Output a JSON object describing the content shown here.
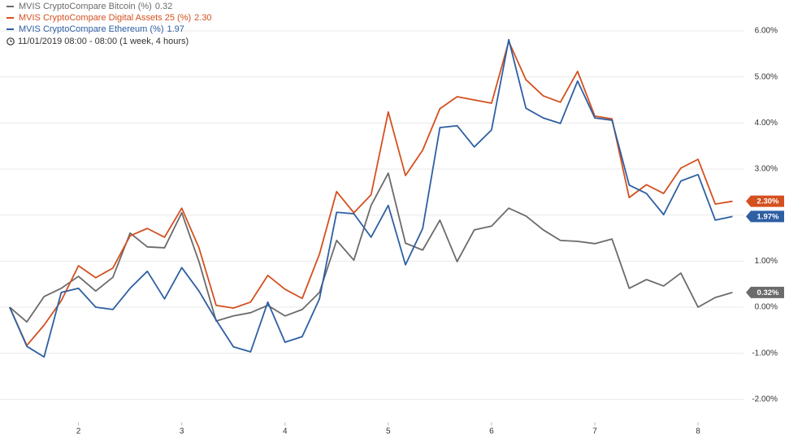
{
  "chart_data": {
    "type": "line",
    "range_label": "11/01/2019 08:00 - 08:00  (1 week, 4 hours)",
    "x": [
      1.3333,
      1.5,
      1.6667,
      1.8333,
      2,
      2.1667,
      2.3333,
      2.5,
      2.6667,
      2.8333,
      3,
      3.1667,
      3.3333,
      3.5,
      3.6667,
      3.8333,
      4,
      4.1667,
      4.3333,
      4.5,
      4.6667,
      4.8333,
      5,
      5.1667,
      5.3333,
      5.5,
      5.6667,
      5.8333,
      6,
      6.1667,
      6.3333,
      6.5,
      6.6667,
      6.8333,
      7,
      7.1667,
      7.3333,
      7.5,
      7.6667,
      7.8333,
      8,
      8.1667,
      8.3333
    ],
    "xlim": [
      1.24,
      8.44
    ],
    "xticks": [
      2,
      3,
      4,
      5,
      6,
      7,
      8
    ],
    "ylim": [
      -2.5,
      6.6
    ],
    "yticks": [
      {
        "value": -2,
        "label": "-2.00%"
      },
      {
        "value": -1,
        "label": "-1.00%"
      },
      {
        "value": 0,
        "label": "0.00%"
      },
      {
        "value": 1,
        "label": "1.00%"
      },
      {
        "value": 2,
        "label": "2.00%"
      },
      {
        "value": 3,
        "label": "3.00%"
      },
      {
        "value": 4,
        "label": "4.00%"
      },
      {
        "value": 5,
        "label": "5.00%"
      },
      {
        "value": 6,
        "label": "6.00%"
      }
    ],
    "grid": true,
    "series": [
      {
        "name": "MVIS CryptoCompare Bitcoin (%)",
        "color": "#6b6b6b",
        "legend_value": "0.32",
        "badge_label": "0.32%",
        "values": [
          0,
          -0.32,
          0.23,
          0.41,
          0.67,
          0.35,
          0.65,
          1.61,
          1.31,
          1.29,
          2.05,
          0.99,
          -0.3,
          -0.19,
          -0.12,
          0.04,
          -0.19,
          -0.05,
          0.32,
          1.45,
          1.02,
          2.21,
          2.91,
          1.39,
          1.24,
          1.89,
          0.99,
          1.68,
          1.76,
          2.15,
          1.98,
          1.68,
          1.45,
          1.43,
          1.38,
          1.48,
          0.41,
          0.6,
          0.46,
          0.74,
          0,
          0.21,
          0.32
        ]
      },
      {
        "name": "MVIS CryptoCompare Digital Assets 25 (%)",
        "color": "#d4501f",
        "legend_value": "2.30",
        "badge_label": "2.30%",
        "values": [
          0,
          -0.83,
          -0.39,
          0.14,
          0.9,
          0.64,
          0.85,
          1.55,
          1.71,
          1.52,
          2.15,
          1.29,
          0.04,
          -0.02,
          0.11,
          0.69,
          0.39,
          0.19,
          1.15,
          2.51,
          2.05,
          2.44,
          4.24,
          2.86,
          3.41,
          4.31,
          4.57,
          4.5,
          4.43,
          5.77,
          4.94,
          4.59,
          4.45,
          5.12,
          4.15,
          4.09,
          2.38,
          2.66,
          2.47,
          3.02,
          3.21,
          2.24,
          2.3
        ]
      },
      {
        "name": "MVIS CryptoCompare Ethereum (%)",
        "color": "#2e5fa3",
        "legend_value": "1.97",
        "badge_label": "1.97%",
        "values": [
          0,
          -0.85,
          -1.08,
          0.32,
          0.41,
          0,
          -0.05,
          0.41,
          0.78,
          0.18,
          0.86,
          0.35,
          -0.28,
          -0.86,
          -0.97,
          0.11,
          -0.76,
          -0.64,
          0.18,
          2.06,
          2.03,
          1.52,
          2.21,
          0.92,
          1.71,
          3.9,
          3.94,
          3.48,
          3.85,
          5.81,
          4.32,
          4.11,
          3.99,
          4.91,
          4.11,
          4.06,
          2.65,
          2.47,
          2.01,
          2.74,
          2.88,
          1.89,
          1.97
        ]
      }
    ]
  }
}
